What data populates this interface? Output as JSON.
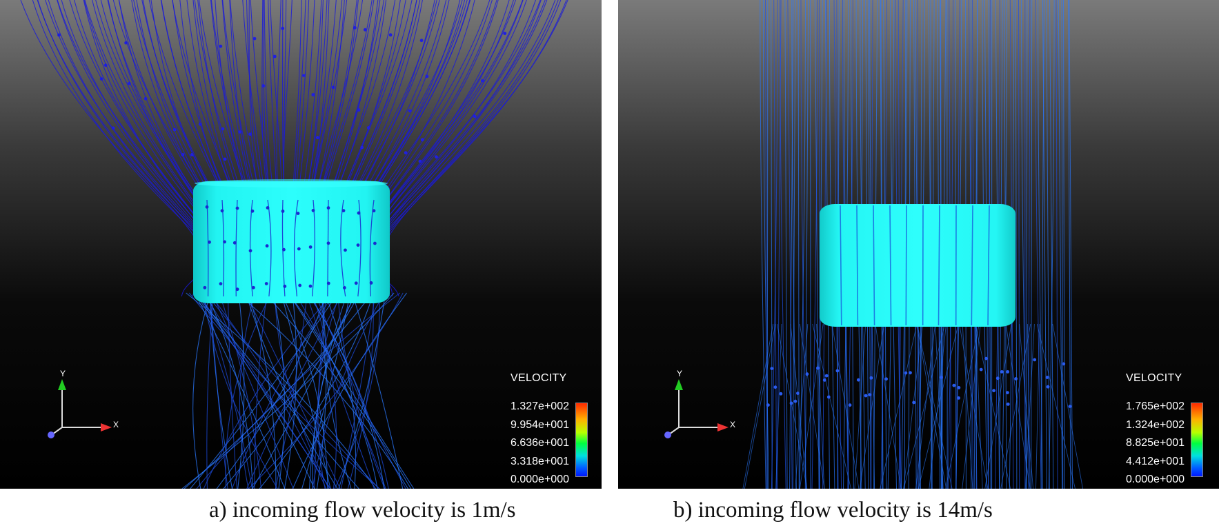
{
  "panels": [
    {
      "legend": {
        "title": "VELOCITY",
        "ticks": [
          "1.327e+002",
          "9.954e+001",
          "6.636e+001",
          "3.318e+001",
          "0.000e+000"
        ]
      },
      "axes": {
        "y": "Y",
        "x": "X"
      },
      "caption": "a) incoming flow velocity is 1m/s"
    },
    {
      "legend": {
        "title": "VELOCITY",
        "ticks": [
          "1.765e+002",
          "1.324e+002",
          "8.825e+001",
          "4.412e+001",
          "0.000e+000"
        ]
      },
      "axes": {
        "y": "Y",
        "x": "X"
      },
      "caption": "b) incoming flow velocity is 14m/s"
    }
  ],
  "colors": {
    "body": "#19f2f0",
    "streamline_slow": "#1a1ad8",
    "streamline_fast": "#2a78ff"
  }
}
